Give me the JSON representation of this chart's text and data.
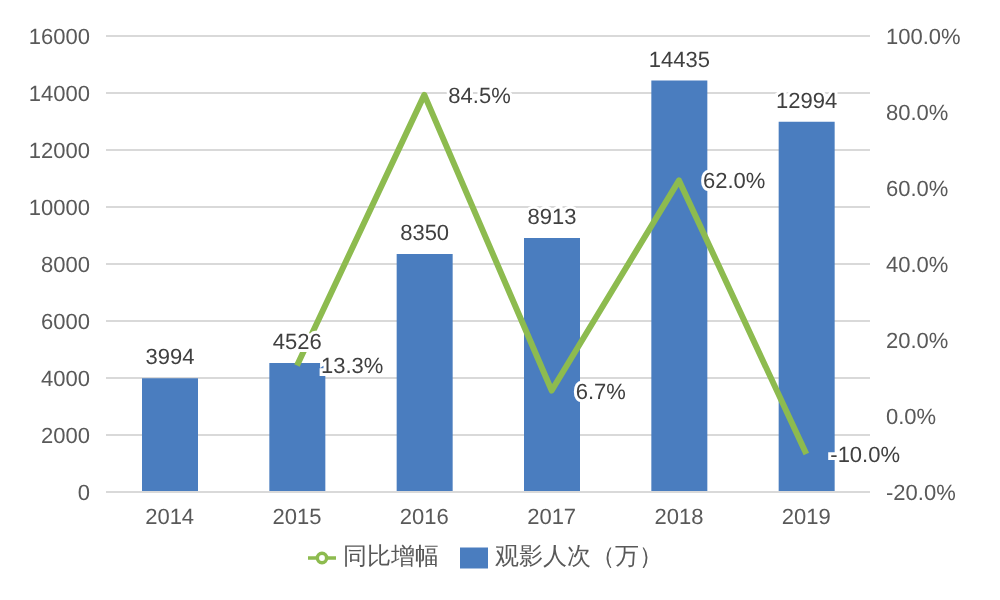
{
  "chart_data": {
    "type": "bar",
    "categories": [
      "2014",
      "2015",
      "2016",
      "2017",
      "2018",
      "2019"
    ],
    "series": [
      {
        "name": "观影人次（万）",
        "color": "#4a7dbf",
        "values": [
          3994,
          4526,
          8350,
          8913,
          14435,
          12994
        ],
        "value_labels": [
          "3994",
          "4526",
          "8350",
          "8913",
          "14435",
          "12994"
        ]
      },
      {
        "name": "同比增幅",
        "type": "line",
        "axis": "y2",
        "color": "#8dbb4f",
        "values": [
          null,
          13.3,
          84.5,
          6.7,
          62.0,
          -10.0
        ],
        "value_labels": [
          null,
          "13.3%",
          "84.5%",
          "6.7%",
          "62.0%",
          "-10.0%"
        ]
      }
    ],
    "ylim": [
      0,
      16000
    ],
    "yticks": [
      0,
      2000,
      4000,
      6000,
      8000,
      10000,
      12000,
      14000,
      16000
    ],
    "y2lim": [
      -20,
      100
    ],
    "y2ticks": [
      {
        "value": -20,
        "label": "-20.0%"
      },
      {
        "value": 0,
        "label": "0.0%"
      },
      {
        "value": 20,
        "label": "20.0%"
      },
      {
        "value": 40,
        "label": "40.0%"
      },
      {
        "value": 60,
        "label": "60.0%"
      },
      {
        "value": 80,
        "label": "80.0%"
      },
      {
        "value": 100,
        "label": "100.0%"
      }
    ],
    "grid": "y",
    "legend": "bottom",
    "marker": "none",
    "line_style": "solid"
  }
}
